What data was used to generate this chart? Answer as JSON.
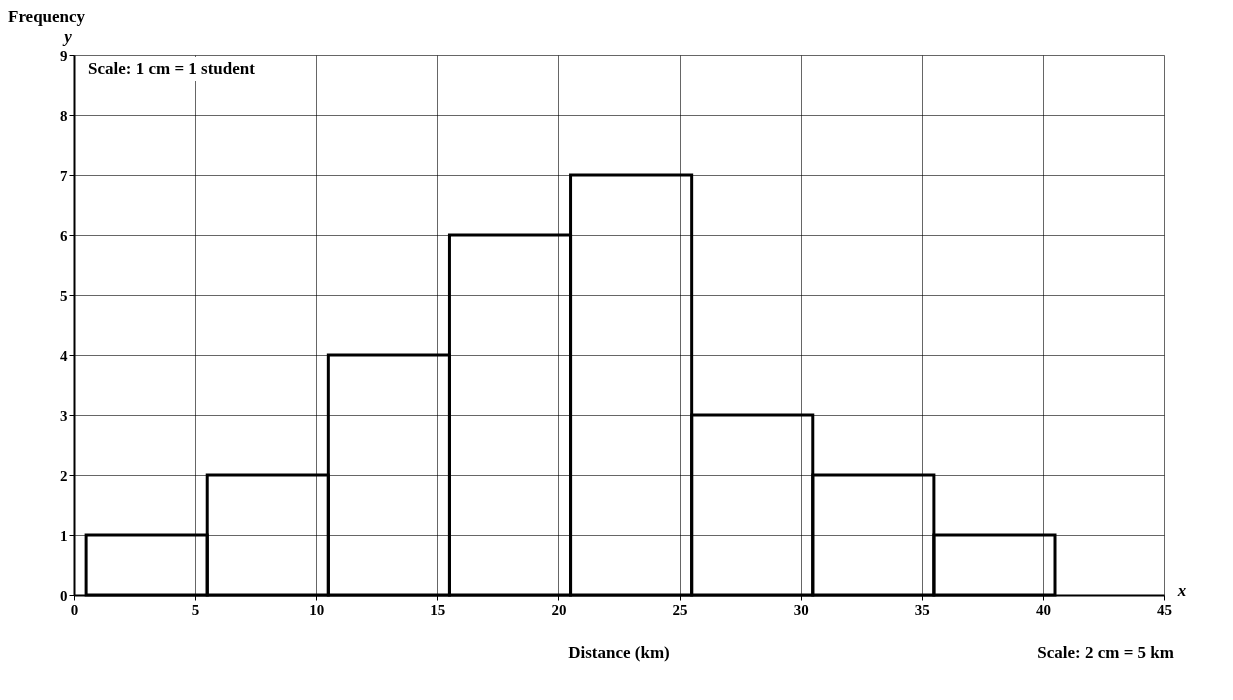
{
  "chart_data": {
    "type": "histogram",
    "xlabel": "Distance (km)",
    "ylabel": "Frequency",
    "annotations": [
      "Scale: 1 cm = 1 student",
      "Scale: 2 cm = 5 km",
      "y",
      "x"
    ],
    "bins": [
      0.5,
      5.5,
      10.5,
      15.5,
      20.5,
      25.5,
      30.5,
      35.5,
      40.5
    ],
    "values": [
      1,
      2,
      4,
      6,
      7,
      3,
      2,
      1
    ],
    "color": "#000000",
    "xlim": [
      0,
      45
    ],
    "xticks": [
      0,
      5,
      10,
      15,
      20,
      25,
      30,
      35,
      40,
      45
    ],
    "ylim": [
      0,
      9
    ],
    "yticks": [
      0,
      1,
      2,
      3,
      4,
      5,
      6,
      7,
      8,
      9
    ],
    "grid": true
  }
}
